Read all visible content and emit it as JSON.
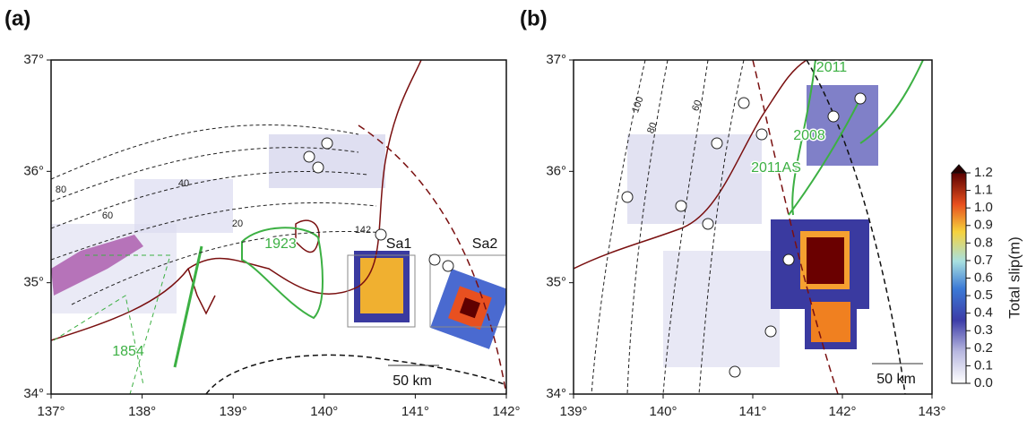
{
  "panels": [
    {
      "label": "(a)",
      "xticks": [
        "137°",
        "138°",
        "139°",
        "140°",
        "141°",
        "142°"
      ],
      "yticks": [
        "37°",
        "36°",
        "35°",
        "34°"
      ],
      "annotations": [
        {
          "text": "80",
          "color": "#222"
        },
        {
          "text": "60",
          "color": "#222"
        },
        {
          "text": "40",
          "color": "#222"
        },
        {
          "text": "20",
          "color": "#222"
        },
        {
          "text": "142",
          "color": "#222"
        },
        {
          "text": "1923",
          "color": "#3cb043"
        },
        {
          "text": "1854",
          "color": "#3cb043"
        },
        {
          "text": "Sa1",
          "color": "#111"
        },
        {
          "text": "Sa2",
          "color": "#111"
        },
        {
          "text": "50 km",
          "color": "#111"
        }
      ]
    },
    {
      "label": "(b)",
      "xticks": [
        "139°",
        "140°",
        "141°",
        "142°",
        "143°"
      ],
      "yticks": [
        "37°",
        "36°",
        "35°",
        "34°"
      ],
      "annotations": [
        {
          "text": "100",
          "color": "#222"
        },
        {
          "text": "80",
          "color": "#222"
        },
        {
          "text": "60",
          "color": "#222"
        },
        {
          "text": "2011",
          "color": "#3cb043"
        },
        {
          "text": "2008",
          "color": "#3cb043"
        },
        {
          "text": "2011AS",
          "color": "#3cb043"
        },
        {
          "text": "50 km",
          "color": "#111"
        }
      ]
    }
  ],
  "colorbar": {
    "title": "Total slip(m)",
    "ticks": [
      "0.0",
      "0.1",
      "0.2",
      "0.3",
      "0.4",
      "0.5",
      "0.6",
      "0.7",
      "0.8",
      "0.9",
      "1.0",
      "1.1",
      "1.2"
    ]
  }
}
